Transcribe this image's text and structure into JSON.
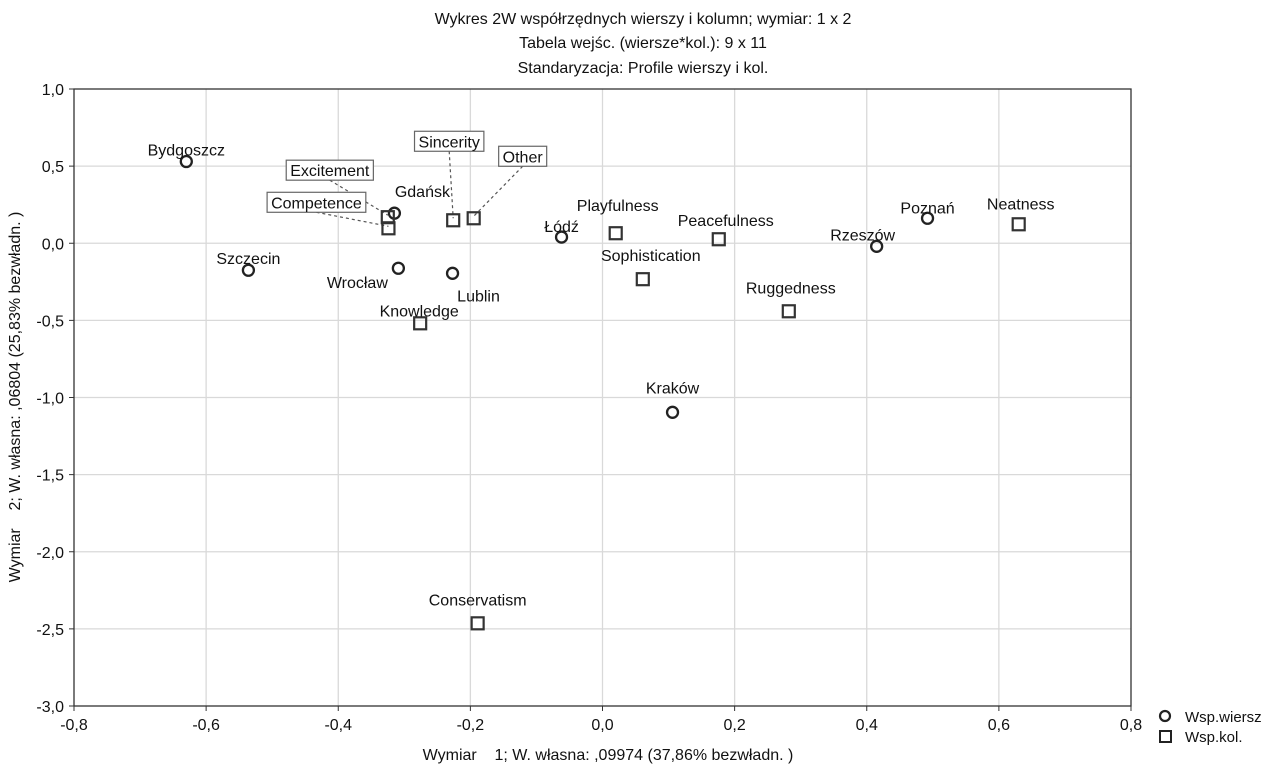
{
  "chart_data": {
    "type": "scatter",
    "title": [
      "Wykres 2W współrzędnych wierszy i kolumn; wymiar:  1 x  2",
      "Tabela wejśc. (wiersze*kol.): 9 x 11",
      "Standaryzacja:   Profile wierszy i kol."
    ],
    "xlabel": "Wymiar    1; W. własna: ,09974 (37,86% bezwładn. )",
    "ylabel": "Wymiar    2; W. własna: ,06804 (25,83% bezwładn. )",
    "xlim": [
      -0.8,
      0.8
    ],
    "ylim": [
      -3.0,
      1.0
    ],
    "xticks": [
      "-0,8",
      "-0,6",
      "-0,4",
      "-0,2",
      "0,0",
      "0,2",
      "0,4",
      "0,6",
      "0,8"
    ],
    "yticks": [
      "1,0",
      "0,5",
      "0,0",
      "-0,5",
      "-1,0",
      "-1,5",
      "-2,0",
      "-2,5",
      "-3,0"
    ],
    "grid": true,
    "legend_position": "bottom-right",
    "series": [
      {
        "name": "Wsp.wiersz",
        "marker": "circle",
        "points": [
          {
            "label": "Bydgoszcz",
            "x": -0.63,
            "y": 0.53
          },
          {
            "label": "Szczecin",
            "x": -0.536,
            "y": -0.175
          },
          {
            "label": "Gdańsk",
            "x": -0.315,
            "y": 0.195
          },
          {
            "label": "Wrocław",
            "x": -0.309,
            "y": -0.162
          },
          {
            "label": "Lublin",
            "x": -0.227,
            "y": -0.195
          },
          {
            "label": "Łódź",
            "x": -0.062,
            "y": 0.04
          },
          {
            "label": "Kraków",
            "x": 0.106,
            "y": -1.096
          },
          {
            "label": "Rzeszów",
            "x": 0.415,
            "y": -0.02
          },
          {
            "label": "Poznań",
            "x": 0.492,
            "y": 0.162
          }
        ]
      },
      {
        "name": "Wsp.kol.",
        "marker": "square",
        "points": [
          {
            "label": "Competence",
            "x": -0.324,
            "y": 0.097
          },
          {
            "label": "Excitement",
            "x": -0.325,
            "y": 0.169
          },
          {
            "label": "Sincerity",
            "x": -0.226,
            "y": 0.149
          },
          {
            "label": "Other",
            "x": -0.195,
            "y": 0.162
          },
          {
            "label": "Playfulness",
            "x": 0.02,
            "y": 0.065
          },
          {
            "label": "Peacefulness",
            "x": 0.176,
            "y": 0.026
          },
          {
            "label": "Sophistication",
            "x": 0.061,
            "y": -0.233
          },
          {
            "label": "Ruggedness",
            "x": 0.282,
            "y": -0.441
          },
          {
            "label": "Neatness",
            "x": 0.63,
            "y": 0.123
          },
          {
            "label": "Knowledge",
            "x": -0.276,
            "y": -0.519
          },
          {
            "label": "Conservatism",
            "x": -0.189,
            "y": -2.464
          }
        ]
      }
    ],
    "colors": {
      "marker": "#222222",
      "grid": "#d9d9d9",
      "axis": "#333333"
    }
  }
}
